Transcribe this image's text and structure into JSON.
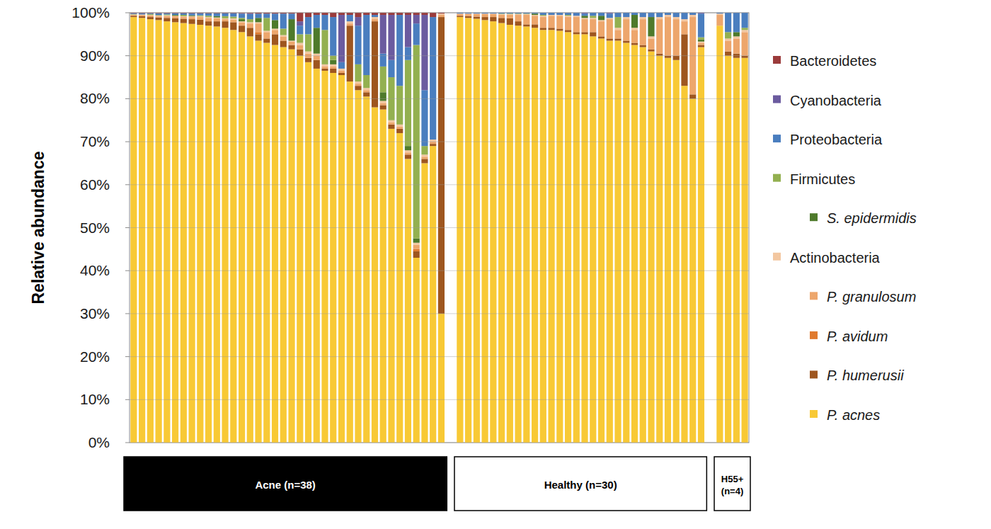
{
  "chart_data": {
    "type": "bar",
    "stacked": true,
    "grid": true,
    "legend": "right",
    "y_label": "Relative abundance",
    "ylim": [
      0,
      100
    ],
    "yticks": [
      {
        "value": 0,
        "label": "0%"
      },
      {
        "value": 10,
        "label": "10%"
      },
      {
        "value": 20,
        "label": "20%"
      },
      {
        "value": 30,
        "label": "30%"
      },
      {
        "value": 40,
        "label": "40%"
      },
      {
        "value": 50,
        "label": "50%"
      },
      {
        "value": 60,
        "label": "60%"
      },
      {
        "value": 70,
        "label": "70%"
      },
      {
        "value": 80,
        "label": "80%"
      },
      {
        "value": 90,
        "label": "90%"
      },
      {
        "value": 100,
        "label": "100%"
      }
    ],
    "groups": [
      {
        "label": "Acne (n=38)",
        "size": 38
      },
      {
        "label": "Healthy (n=30)",
        "size": 30
      },
      {
        "label": "H55+ (n=4)",
        "size": 4
      }
    ],
    "categories": [
      null,
      null,
      null,
      null,
      null,
      null,
      null,
      null,
      null,
      null,
      null,
      null,
      null,
      null,
      null,
      null,
      null,
      null,
      null,
      null,
      null,
      null,
      null,
      null,
      null,
      null,
      null,
      null,
      null,
      null,
      null,
      null,
      null,
      null,
      null,
      null,
      null,
      null,
      null,
      null,
      null,
      null,
      null,
      null,
      null,
      null,
      null,
      null,
      null,
      null,
      null,
      null,
      null,
      null,
      null,
      null,
      null,
      null,
      null,
      null,
      null,
      null,
      null,
      null,
      null,
      null,
      null,
      null,
      null,
      null,
      null,
      null
    ],
    "series": [
      {
        "name": "Bacteroidetes",
        "color": "#9b3b3b",
        "values": [
          0.1,
          0.1,
          0.1,
          0.1,
          0.1,
          0.1,
          0.1,
          0.1,
          0.1,
          0.1,
          0.1,
          0.1,
          0.1,
          0.1,
          0.1,
          0.2,
          0.2,
          0.2,
          0.2,
          0.2,
          2,
          1,
          0.5,
          0.5,
          1,
          0.5,
          0.5,
          1,
          0.5,
          0.5,
          0.5,
          0.5,
          0.5,
          0.5,
          0.5,
          0.5,
          1,
          0.2,
          0,
          0,
          0,
          0,
          0,
          0,
          0,
          0,
          0,
          0,
          0,
          0,
          0,
          0,
          0,
          0,
          0,
          0,
          0,
          0,
          0,
          0,
          0,
          0,
          0,
          0,
          0,
          0,
          0,
          0,
          0,
          0,
          0,
          0
        ]
      },
      {
        "name": "Cyanobacteria",
        "color": "#6b5b9f",
        "values": [
          0,
          0,
          0,
          0,
          0,
          0,
          0,
          0,
          0,
          0,
          0,
          0,
          0,
          0.1,
          0.2,
          0,
          0,
          0,
          0,
          0,
          1,
          0,
          0,
          0,
          0,
          11,
          0,
          2,
          0,
          0,
          9,
          10.5,
          0,
          7.5,
          2,
          17.5,
          0,
          0,
          0,
          0,
          0,
          0,
          0,
          0,
          0,
          0,
          0,
          0,
          0,
          0,
          0,
          0,
          0,
          0.2,
          0,
          0,
          0.2,
          0,
          0,
          0,
          0,
          0,
          0,
          0,
          0,
          0,
          0,
          0.2,
          0,
          0,
          0,
          0
        ]
      },
      {
        "name": "Proteobacteria",
        "color": "#4a7ebf",
        "values": [
          0.2,
          0.3,
          0.2,
          0.4,
          0.3,
          0.4,
          0.4,
          0.5,
          0.5,
          0.6,
          0.7,
          0.7,
          0.8,
          1,
          1.2,
          1,
          1,
          1.5,
          3.5,
          1.3,
          2,
          4,
          3,
          3.5,
          9,
          1.5,
          1.5,
          9,
          14,
          0.5,
          3,
          4,
          16.5,
          3,
          5,
          13,
          28.5,
          0,
          0.2,
          0.2,
          0.2,
          0.2,
          0.2,
          0.2,
          0.2,
          0.2,
          0.2,
          0.2,
          0.5,
          0.5,
          0.5,
          0.5,
          0.7,
          0.5,
          0.7,
          0.7,
          1,
          1,
          1,
          0.5,
          1,
          1,
          1,
          0.5,
          1,
          1.5,
          0.5,
          5.5,
          0.2,
          4.5,
          4.5,
          3.5
        ]
      },
      {
        "name": "Firmicutes",
        "color": "#93b050",
        "values": [
          0.1,
          0,
          0.2,
          0,
          0.2,
          0,
          0.3,
          0,
          0.2,
          0.3,
          0,
          0.5,
          0.4,
          0.3,
          0.7,
          0,
          3,
          0,
          1.5,
          0,
          2,
          4,
          0,
          8,
          1,
          0,
          0,
          4,
          3,
          0,
          6,
          10,
          9,
          20,
          45,
          2,
          0,
          0,
          0,
          0,
          0,
          0,
          0,
          0.1,
          0.1,
          0.1,
          0.1,
          0,
          0.2,
          0,
          0,
          0.2,
          0,
          0,
          0.5,
          0,
          0,
          2.5,
          0,
          0,
          0,
          0,
          0,
          0,
          0,
          0,
          0,
          0.5,
          0,
          1.5,
          0,
          0.5
        ]
      },
      {
        "name": "S. epidermidis",
        "color": "#4e7a2b",
        "values": [
          0,
          0,
          0,
          0.1,
          0,
          0.2,
          0,
          0.2,
          0,
          0,
          0.3,
          0,
          0,
          0.5,
          0,
          1,
          0,
          2,
          0,
          5,
          0,
          0,
          6,
          0,
          1,
          0,
          0,
          0,
          0,
          0,
          2,
          0,
          0,
          1,
          1,
          0,
          0,
          0,
          0,
          0,
          0,
          0,
          0,
          0,
          0,
          0,
          0,
          0.3,
          0,
          0,
          0,
          0,
          0,
          0.5,
          0,
          1,
          0,
          0,
          0,
          3,
          0,
          4.5,
          0,
          0,
          0,
          0,
          0,
          0.5,
          0,
          0,
          1,
          0
        ]
      },
      {
        "name": "Actinobacteria",
        "color": "#f3c7a0",
        "values": [
          0.1,
          0.1,
          0.1,
          0.2,
          0.2,
          0.1,
          0.2,
          0.2,
          0.2,
          0.2,
          0.2,
          0.2,
          0.3,
          0.2,
          0.3,
          0.3,
          0.3,
          0.3,
          0.3,
          0.2,
          0.5,
          0.5,
          0.5,
          0.5,
          0.5,
          0.5,
          0.5,
          0.5,
          0.5,
          0.5,
          0.5,
          0.5,
          0.5,
          0.5,
          0.5,
          0.5,
          0.5,
          0.3,
          0.1,
          0.1,
          0.1,
          0.1,
          0.1,
          0.1,
          0.1,
          0.2,
          0.2,
          0.2,
          0.3,
          0.2,
          0.2,
          0.3,
          0.3,
          0.3,
          0.3,
          0.3,
          0.3,
          0.5,
          0.5,
          0.5,
          0.5,
          0.5,
          0.5,
          0.5,
          0.5,
          0.5,
          0.5,
          0.3,
          0.3,
          0.5,
          0.5,
          0.5
        ]
      },
      {
        "name": "P. granulosum",
        "color": "#eda66c",
        "values": [
          0.2,
          0.3,
          0.4,
          0.3,
          0.4,
          0.5,
          0.4,
          0.5,
          0.6,
          0.8,
          0.7,
          0.5,
          0.6,
          0.8,
          1,
          2,
          1.5,
          1,
          1,
          0.8,
          1,
          1,
          1,
          0.5,
          0.5,
          0.5,
          0.5,
          0.5,
          0.5,
          0.5,
          0.5,
          0.5,
          0.5,
          0.5,
          1,
          0.5,
          0.5,
          0.5,
          0.4,
          0.5,
          0.6,
          0.7,
          0.7,
          0.8,
          0.9,
          1.5,
          2.2,
          2,
          2.5,
          2.8,
          3,
          3,
          3.5,
          3,
          3,
          3.5,
          4.5,
          2,
          5,
          3,
          6,
          2.5,
          8,
          9,
          8.5,
          3,
          18,
          0.5,
          2.5,
          2.5,
          3.5,
          5.5
        ]
      },
      {
        "name": "P. avidum",
        "color": "#e07a2e",
        "values": [
          0,
          0,
          0,
          0,
          0,
          0,
          0,
          0,
          0,
          0,
          0,
          0,
          0,
          0,
          0,
          0.5,
          0,
          0,
          0,
          0,
          0,
          0,
          0,
          0,
          0,
          0,
          0,
          0,
          0,
          0,
          0,
          0,
          0,
          0,
          0.5,
          0,
          0,
          0,
          0,
          0,
          0,
          0,
          0,
          0,
          0,
          0,
          0,
          0,
          0,
          0,
          0,
          0,
          0,
          0,
          0,
          0,
          0,
          0,
          0,
          0,
          0,
          0,
          0,
          0,
          0,
          0,
          0,
          0,
          0,
          0,
          0,
          0
        ]
      },
      {
        "name": "P. humerusii",
        "color": "#9e561f",
        "values": [
          0.3,
          0.4,
          0.5,
          0.6,
          0.8,
          0.9,
          1,
          1.1,
          1.2,
          1,
          1.2,
          1.5,
          1.8,
          1.5,
          2,
          1.5,
          1,
          2.5,
          1.5,
          1,
          1.5,
          1,
          2,
          0.5,
          1,
          0.5,
          13,
          1,
          1,
          20,
          1,
          1,
          1,
          1,
          1.5,
          1,
          0.5,
          69,
          0.3,
          0.4,
          0.5,
          0.7,
          1,
          1.2,
          1.5,
          1,
          0.5,
          0.8,
          0.5,
          0.5,
          0.5,
          0.5,
          0.5,
          0.5,
          1,
          0.5,
          0.5,
          0.5,
          0.5,
          0.5,
          0.5,
          0.5,
          0.5,
          0.5,
          1,
          12,
          1,
          0.5,
          0,
          1,
          1,
          0.5
        ]
      },
      {
        "name": "P. acnes",
        "color": "#f8c935",
        "values": [
          99,
          98.8,
          98.5,
          98.3,
          98,
          97.8,
          97.6,
          97.4,
          97.2,
          97,
          96.8,
          96.5,
          96,
          95.5,
          94.5,
          93.5,
          93,
          92.5,
          92,
          91.5,
          90,
          88.5,
          87,
          86.5,
          86,
          85.5,
          84,
          82,
          80.5,
          78,
          77.5,
          73,
          72,
          66,
          43,
          65,
          69,
          30,
          99,
          98.8,
          98.6,
          98.3,
          98,
          97.6,
          97.2,
          97,
          96.8,
          96.5,
          96,
          96,
          95.8,
          95.5,
          95,
          95,
          94.5,
          94,
          93.5,
          93.5,
          93,
          92.5,
          92,
          91,
          90,
          89.5,
          89,
          83,
          80,
          92,
          97,
          90,
          89.5,
          89.5
        ]
      }
    ]
  }
}
